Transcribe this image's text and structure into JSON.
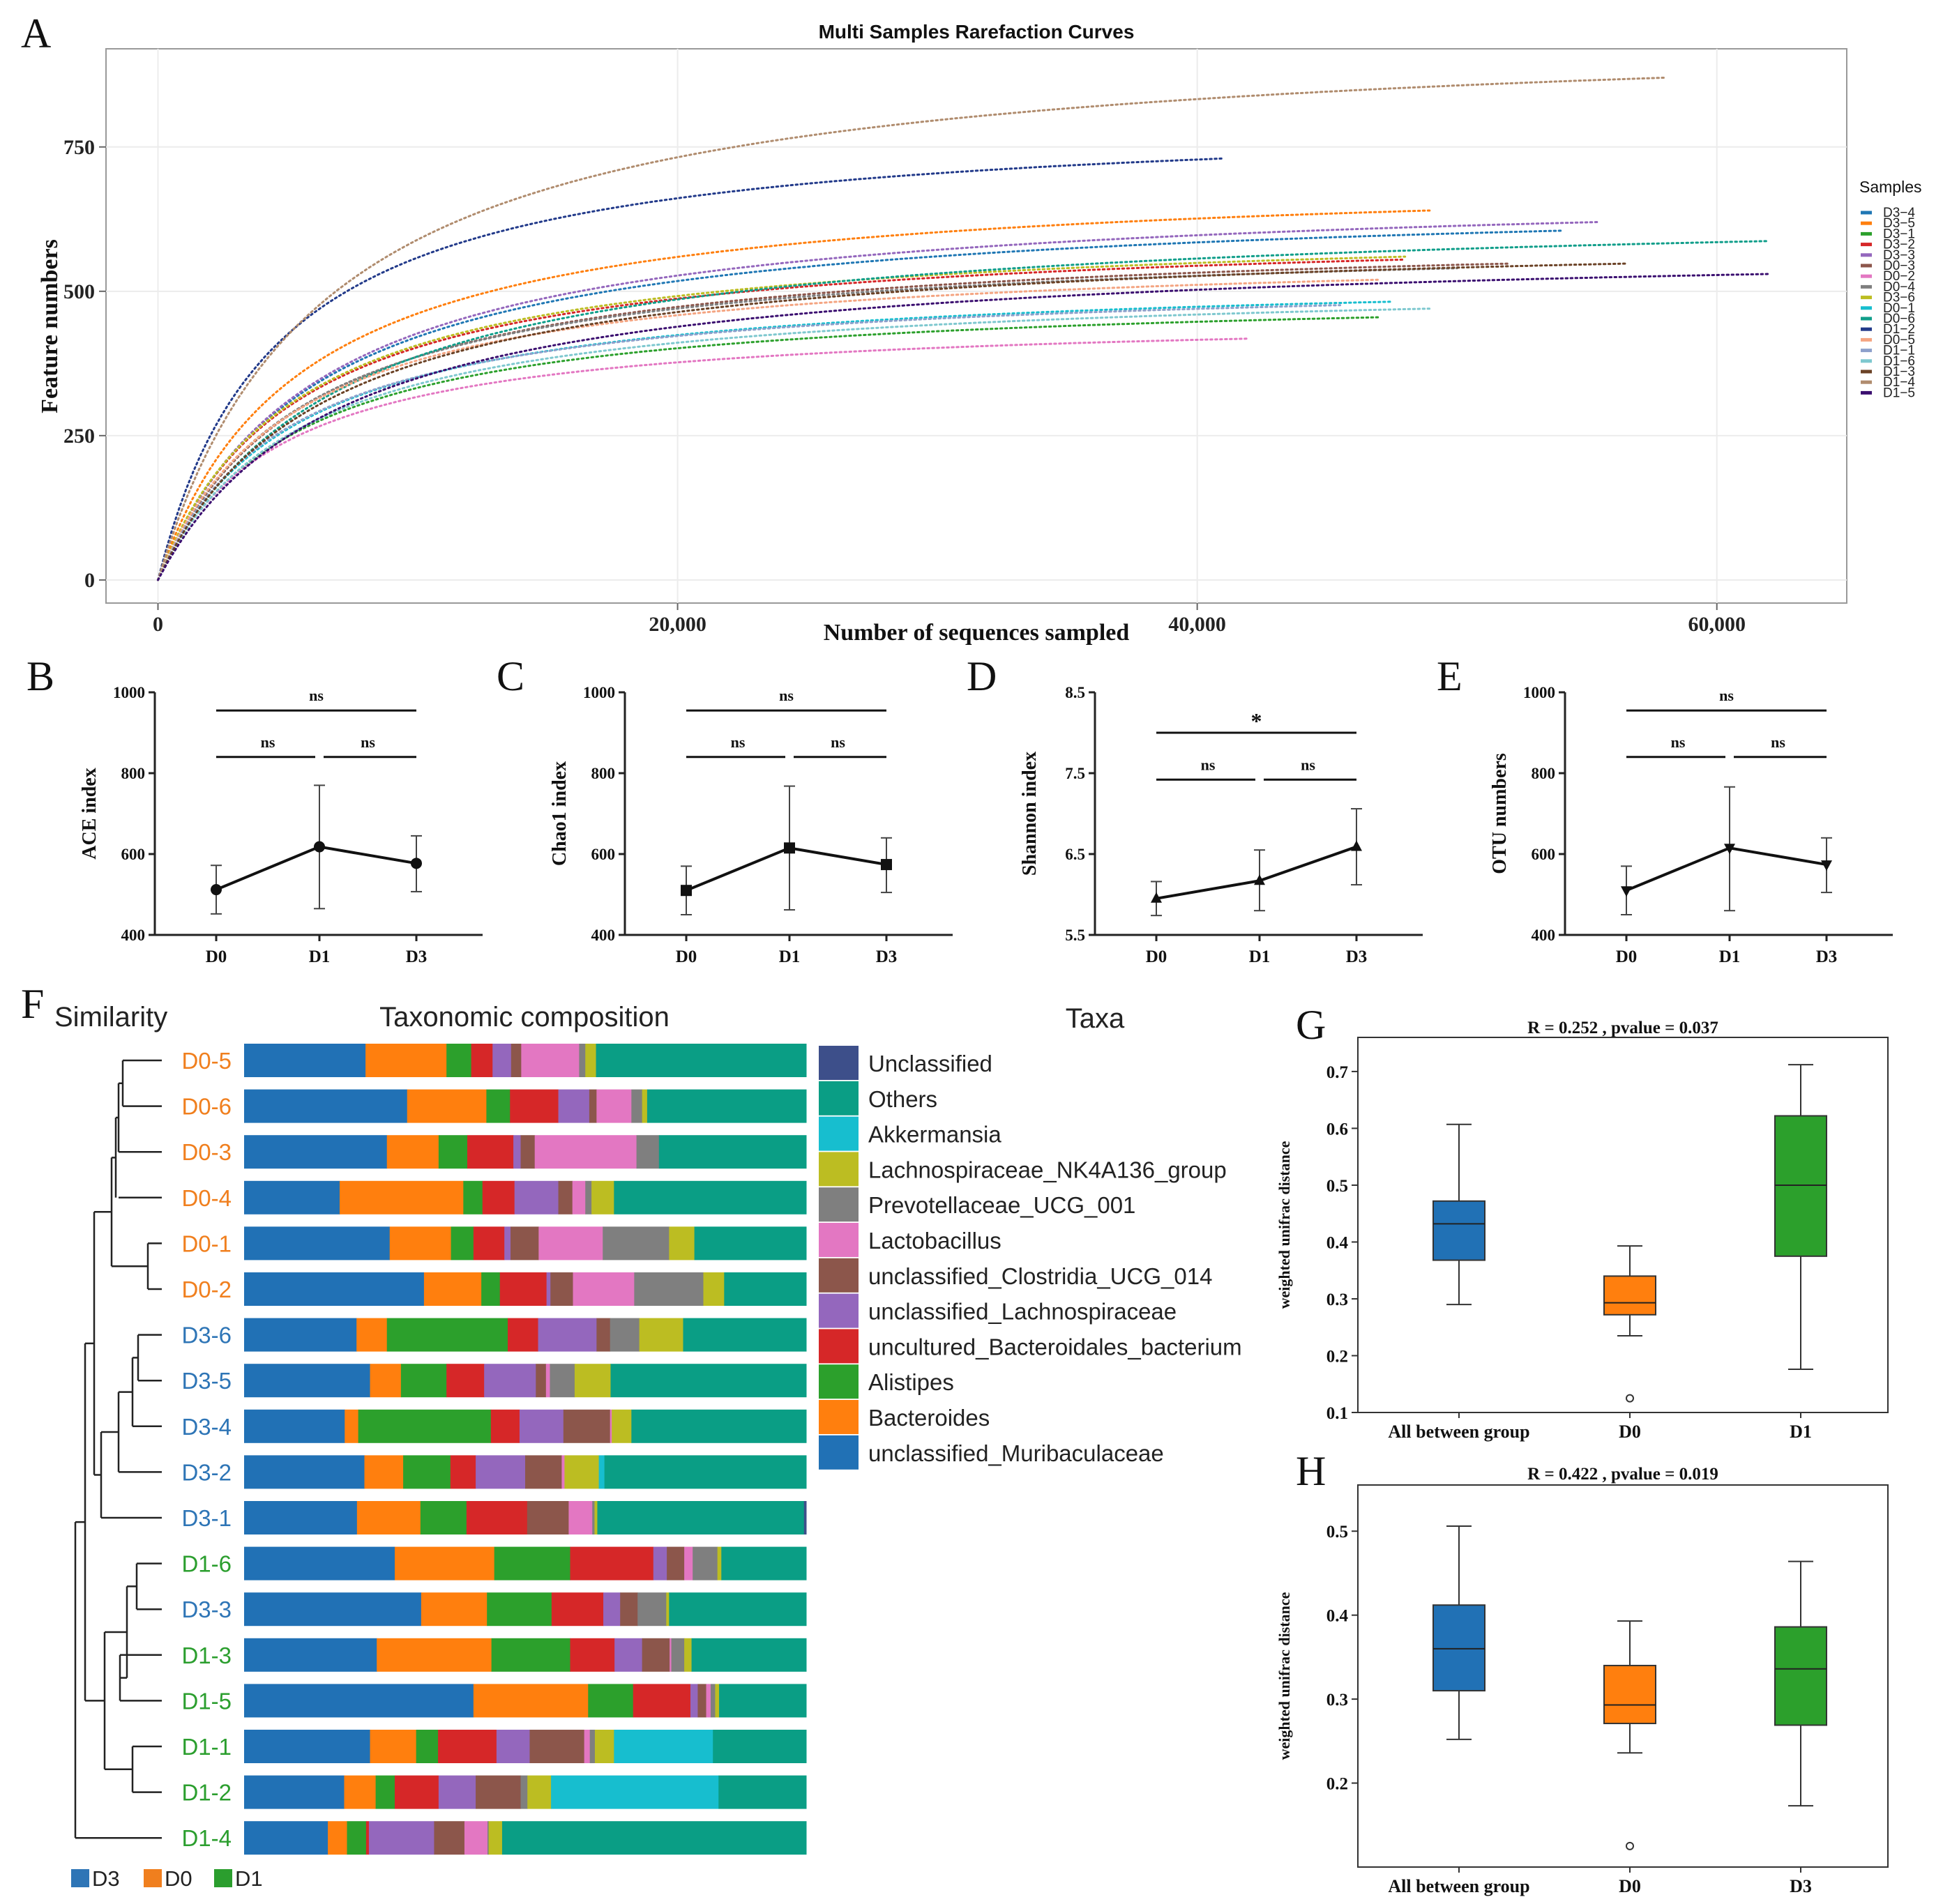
{
  "figure": {
    "panel_labels": [
      "A",
      "B",
      "C",
      "D",
      "E",
      "F",
      "G",
      "H"
    ]
  },
  "chart_data": [
    {
      "panel": "A",
      "type": "line",
      "title": "Multi Samples Rarefaction Curves",
      "xlabel": "Number of sequences sampled",
      "ylabel": "Feature numbers",
      "xlim": [
        -2000,
        65000
      ],
      "ylim": [
        -40,
        920
      ],
      "xticks": [
        0,
        20000,
        40000,
        60000
      ],
      "xtick_labels": [
        "0",
        "20,000",
        "40,000",
        "60,000"
      ],
      "yticks": [
        0,
        250,
        500,
        750
      ],
      "ytick_labels": [
        "0",
        "250",
        "500",
        "750"
      ],
      "legend_title": "Samples",
      "legend_position": "right",
      "series": [
        {
          "name": "D3−4",
          "color": "#1f77b4",
          "max_x": 54000,
          "final": 605
        },
        {
          "name": "D3−5",
          "color": "#ff7f0e",
          "max_x": 49000,
          "final": 640
        },
        {
          "name": "D3−1",
          "color": "#2ca02c",
          "max_x": 47000,
          "final": 455
        },
        {
          "name": "D3−2",
          "color": "#d62728",
          "max_x": 48000,
          "final": 555
        },
        {
          "name": "D3−3",
          "color": "#9467bd",
          "max_x": 55500,
          "final": 620
        },
        {
          "name": "D0−3",
          "color": "#8c564b",
          "max_x": 52000,
          "final": 548
        },
        {
          "name": "D0−2",
          "color": "#e377c2",
          "max_x": 42000,
          "final": 418
        },
        {
          "name": "D0−4",
          "color": "#7f7f7f",
          "max_x": 50000,
          "final": 540
        },
        {
          "name": "D3−6",
          "color": "#bcbd22",
          "max_x": 48000,
          "final": 560
        },
        {
          "name": "D0−1",
          "color": "#17becf",
          "max_x": 47500,
          "final": 482
        },
        {
          "name": "D0−6",
          "color": "#109e8a",
          "max_x": 62000,
          "final": 587
        },
        {
          "name": "D1−2",
          "color": "#223a8a",
          "max_x": 41000,
          "final": 730
        },
        {
          "name": "D0−5",
          "color": "#f4a582",
          "max_x": 47000,
          "final": 520
        },
        {
          "name": "D1−1",
          "color": "#8da0cb",
          "max_x": 45500,
          "final": 476
        },
        {
          "name": "D1−6",
          "color": "#7ec8cf",
          "max_x": 49000,
          "final": 470
        },
        {
          "name": "D1−3",
          "color": "#6b4226",
          "max_x": 56500,
          "final": 548
        },
        {
          "name": "D1−4",
          "color": "#b08c6e",
          "max_x": 58000,
          "final": 870
        },
        {
          "name": "D1−5",
          "color": "#3b0f70",
          "max_x": 62000,
          "final": 530
        }
      ]
    },
    {
      "panel": "B",
      "type": "line",
      "ylabel": "ACE index",
      "marker": "circle",
      "categories": [
        "D0",
        "D1",
        "D3"
      ],
      "values": [
        512,
        618,
        577
      ],
      "err_low": [
        452,
        465,
        507
      ],
      "err_high": [
        572,
        770,
        645
      ],
      "ylim": [
        400,
        1000
      ],
      "yticks": [
        400,
        600,
        800,
        1000
      ],
      "ytick_labels": [
        "400",
        "600",
        "800",
        "1000"
      ],
      "brackets": [
        {
          "from": 0,
          "to": 2,
          "y": 955,
          "label": "ns"
        },
        {
          "from": 0,
          "to": 1,
          "y": 840,
          "label": "ns"
        },
        {
          "from": 1,
          "to": 2,
          "y": 840,
          "label": "ns"
        }
      ]
    },
    {
      "panel": "C",
      "type": "line",
      "ylabel": "Chao1 index",
      "marker": "square",
      "categories": [
        "D0",
        "D1",
        "D3"
      ],
      "values": [
        510,
        615,
        574
      ],
      "err_low": [
        450,
        462,
        505
      ],
      "err_high": [
        570,
        768,
        640
      ],
      "ylim": [
        400,
        1000
      ],
      "yticks": [
        400,
        600,
        800,
        1000
      ],
      "ytick_labels": [
        "400",
        "600",
        "800",
        "1000"
      ],
      "brackets": [
        {
          "from": 0,
          "to": 2,
          "y": 955,
          "label": "ns"
        },
        {
          "from": 0,
          "to": 1,
          "y": 840,
          "label": "ns"
        },
        {
          "from": 1,
          "to": 2,
          "y": 840,
          "label": "ns"
        }
      ]
    },
    {
      "panel": "D",
      "type": "line",
      "ylabel": "Shannon index",
      "marker": "triangle",
      "categories": [
        "D0",
        "D1",
        "D3"
      ],
      "values": [
        5.95,
        6.17,
        6.59
      ],
      "err_low": [
        5.74,
        5.8,
        6.12
      ],
      "err_high": [
        6.16,
        6.55,
        7.06
      ],
      "ylim": [
        5.5,
        8.5
      ],
      "yticks": [
        5.5,
        6.5,
        7.5,
        8.5
      ],
      "ytick_labels": [
        "5.5",
        "6.5",
        "7.5",
        "8.5"
      ],
      "brackets": [
        {
          "from": 0,
          "to": 2,
          "y": 8.0,
          "label": "*"
        },
        {
          "from": 0,
          "to": 1,
          "y": 7.42,
          "label": "ns"
        },
        {
          "from": 1,
          "to": 2,
          "y": 7.42,
          "label": "ns"
        }
      ]
    },
    {
      "panel": "E",
      "type": "line",
      "ylabel": "OTU numbers",
      "marker": "triangle-down",
      "categories": [
        "D0",
        "D1",
        "D3"
      ],
      "values": [
        510,
        615,
        574
      ],
      "err_low": [
        450,
        460,
        505
      ],
      "err_high": [
        570,
        766,
        640
      ],
      "ylim": [
        400,
        1000
      ],
      "yticks": [
        400,
        600,
        800,
        1000
      ],
      "ytick_labels": [
        "400",
        "600",
        "800",
        "1000"
      ],
      "brackets": [
        {
          "from": 0,
          "to": 2,
          "y": 955,
          "label": "ns"
        },
        {
          "from": 0,
          "to": 1,
          "y": 840,
          "label": "ns"
        },
        {
          "from": 1,
          "to": 2,
          "y": 840,
          "label": "ns"
        }
      ]
    },
    {
      "panel": "F",
      "type": "bar",
      "stacked": true,
      "orientation": "horizontal",
      "headers": {
        "similarity": "Similarity",
        "composition": "Taxonomic composition",
        "taxa": "Taxa"
      },
      "group_colors": {
        "D3": "#2e75b6",
        "D0": "#f07f1e",
        "D1": "#2b9e2e"
      },
      "group_legend": [
        "D3",
        "D0",
        "D1"
      ],
      "taxa": [
        {
          "name": "unclassified_Muribaculaceae",
          "color": "#2171b5"
        },
        {
          "name": "Bacteroides",
          "color": "#ff7f0e"
        },
        {
          "name": "Alistipes",
          "color": "#2ca02c"
        },
        {
          "name": "uncultured_Bacteroidales_bacterium",
          "color": "#d62728"
        },
        {
          "name": "unclassified_Lachnospiraceae",
          "color": "#9467bd"
        },
        {
          "name": "unclassified_Clostridia_UCG_014",
          "color": "#8c564b"
        },
        {
          "name": "Lactobacillus",
          "color": "#e377c2"
        },
        {
          "name": "Prevotellaceae_UCG_001",
          "color": "#7f7f7f"
        },
        {
          "name": "Lachnospiraceae_NK4A136_group",
          "color": "#bcbd22"
        },
        {
          "name": "Akkermansia",
          "color": "#17becf"
        },
        {
          "name": "Others",
          "color": "#0a9e85"
        },
        {
          "name": "Unclassified",
          "color": "#3d4f8a"
        }
      ],
      "taxa_legend_order": [
        "Unclassified",
        "Others",
        "Akkermansia",
        "Lachnospiraceae_NK4A136_group",
        "Prevotellaceae_UCG_001",
        "Lactobacillus",
        "unclassified_Clostridia_UCG_014",
        "unclassified_Lachnospiraceae",
        "uncultured_Bacteroidales_bacterium",
        "Alistipes",
        "Bacteroides",
        "unclassified_Muribaculaceae"
      ],
      "samples": [
        {
          "name": "D0-5",
          "group": "D0",
          "values": [
            21.6,
            14.4,
            4.4,
            3.8,
            3.3,
            1.8,
            10.3,
            1.1,
            1.9,
            0.0,
            37.4,
            0.0
          ]
        },
        {
          "name": "D0-6",
          "group": "D0",
          "values": [
            29.0,
            14.1,
            4.2,
            8.6,
            5.5,
            1.3,
            6.2,
            1.9,
            0.9,
            0.0,
            28.3,
            0.0
          ]
        },
        {
          "name": "D0-3",
          "group": "D0",
          "values": [
            25.4,
            9.2,
            5.1,
            8.2,
            1.3,
            2.5,
            18.1,
            4.0,
            0.0,
            0.0,
            26.2,
            0.0
          ]
        },
        {
          "name": "D0-4",
          "group": "D0",
          "values": [
            17.0,
            22.0,
            3.4,
            5.7,
            7.8,
            2.5,
            2.3,
            1.1,
            4.0,
            0.0,
            34.2,
            0.0
          ]
        },
        {
          "name": "D0-1",
          "group": "D0",
          "values": [
            25.9,
            10.9,
            4.0,
            5.5,
            1.1,
            5.0,
            11.4,
            11.8,
            4.5,
            0.0,
            19.9,
            0.0
          ]
        },
        {
          "name": "D0-2",
          "group": "D0",
          "values": [
            32.0,
            10.2,
            3.3,
            8.3,
            0.7,
            4.0,
            10.9,
            12.3,
            3.7,
            0.0,
            14.6,
            0.0
          ]
        },
        {
          "name": "D3-6",
          "group": "D3",
          "values": [
            20.0,
            5.4,
            21.5,
            5.4,
            10.4,
            2.4,
            0.0,
            5.2,
            7.8,
            0.0,
            21.9,
            0.0
          ]
        },
        {
          "name": "D3-5",
          "group": "D3",
          "values": [
            22.4,
            5.5,
            8.1,
            6.7,
            9.2,
            1.8,
            0.7,
            4.4,
            6.4,
            0.0,
            34.8,
            0.0
          ]
        },
        {
          "name": "D3-4",
          "group": "D3",
          "values": [
            17.9,
            2.4,
            23.6,
            5.1,
            7.8,
            8.3,
            0.3,
            0.0,
            3.5,
            0.0,
            31.1,
            0.0
          ]
        },
        {
          "name": "D3-2",
          "group": "D3",
          "values": [
            21.4,
            6.9,
            8.4,
            4.5,
            8.8,
            6.5,
            0.5,
            0.0,
            6.1,
            1.0,
            35.9,
            0.0
          ]
        },
        {
          "name": "D3-1",
          "group": "D3",
          "values": [
            20.1,
            11.3,
            8.2,
            10.8,
            0.0,
            7.4,
            4.2,
            0.4,
            0.5,
            0.0,
            36.8,
            0.4
          ]
        },
        {
          "name": "D1-6",
          "group": "D1",
          "values": [
            26.8,
            17.7,
            13.5,
            14.8,
            2.4,
            3.1,
            1.5,
            4.4,
            0.7,
            0.0,
            15.1,
            0.0
          ]
        },
        {
          "name": "D3-3",
          "group": "D3",
          "values": [
            31.5,
            11.7,
            11.5,
            9.2,
            3.0,
            3.1,
            0.0,
            5.1,
            0.5,
            0.0,
            24.4,
            0.0
          ]
        },
        {
          "name": "D1-3",
          "group": "D1",
          "values": [
            23.6,
            20.4,
            14.0,
            7.9,
            4.9,
            4.9,
            0.3,
            2.3,
            1.3,
            0.0,
            20.4,
            0.0
          ]
        },
        {
          "name": "D1-5",
          "group": "D1",
          "values": [
            40.8,
            20.4,
            8.0,
            10.2,
            1.3,
            1.5,
            0.8,
            0.8,
            0.7,
            0.0,
            15.5,
            0.0
          ]
        },
        {
          "name": "D1-1",
          "group": "D1",
          "values": [
            22.4,
            8.2,
            3.9,
            10.4,
            5.9,
            9.7,
            1.0,
            0.9,
            3.4,
            17.6,
            16.6,
            0.0
          ]
        },
        {
          "name": "D1-2",
          "group": "D1",
          "values": [
            17.8,
            5.6,
            3.4,
            7.8,
            6.6,
            8.0,
            0.0,
            1.2,
            4.2,
            29.8,
            15.6,
            0.0
          ]
        },
        {
          "name": "D1-4",
          "group": "D1",
          "values": [
            14.9,
            3.4,
            3.4,
            0.5,
            11.6,
            5.4,
            4.1,
            0.2,
            2.4,
            0.0,
            54.1,
            0.0
          ]
        }
      ]
    },
    {
      "panel": "G",
      "type": "box",
      "title": "R = 0.252 , pvalue = 0.037",
      "ylabel": "weighted unifrac distance",
      "categories": [
        "All between group",
        "D0",
        "D1"
      ],
      "colors": [
        "#2171b5",
        "#ff7f0e",
        "#2ca02c"
      ],
      "boxes": [
        {
          "min": 0.29,
          "q1": 0.368,
          "median": 0.432,
          "q3": 0.472,
          "max": 0.607,
          "outliers": []
        },
        {
          "min": 0.235,
          "q1": 0.272,
          "median": 0.293,
          "q3": 0.34,
          "max": 0.393,
          "outliers": [
            0.125
          ]
        },
        {
          "min": 0.176,
          "q1": 0.375,
          "median": 0.5,
          "q3": 0.622,
          "max": 0.712,
          "outliers": []
        }
      ],
      "ylim": [
        0.1,
        0.76
      ],
      "yticks": [
        0.1,
        0.2,
        0.3,
        0.4,
        0.5,
        0.6,
        0.7
      ],
      "ytick_labels": [
        "0.1",
        "0.2",
        "0.3",
        "0.4",
        "0.5",
        "0.6",
        "0.7"
      ]
    },
    {
      "panel": "H",
      "type": "box",
      "title": "R = 0.422 , pvalue = 0.019",
      "ylabel": "weighted unifrac distance",
      "categories": [
        "All between group",
        "D0",
        "D3"
      ],
      "colors": [
        "#2171b5",
        "#ff7f0e",
        "#2ca02c"
      ],
      "boxes": [
        {
          "min": 0.252,
          "q1": 0.31,
          "median": 0.36,
          "q3": 0.412,
          "max": 0.506,
          "outliers": []
        },
        {
          "min": 0.236,
          "q1": 0.271,
          "median": 0.293,
          "q3": 0.34,
          "max": 0.393,
          "outliers": [
            0.125
          ]
        },
        {
          "min": 0.173,
          "q1": 0.269,
          "median": 0.336,
          "q3": 0.386,
          "max": 0.464,
          "outliers": []
        }
      ],
      "ylim": [
        0.1,
        0.555
      ],
      "yticks": [
        0.2,
        0.3,
        0.4,
        0.5
      ],
      "ytick_labels": [
        "0.2",
        "0.3",
        "0.4",
        "0.5"
      ]
    }
  ]
}
